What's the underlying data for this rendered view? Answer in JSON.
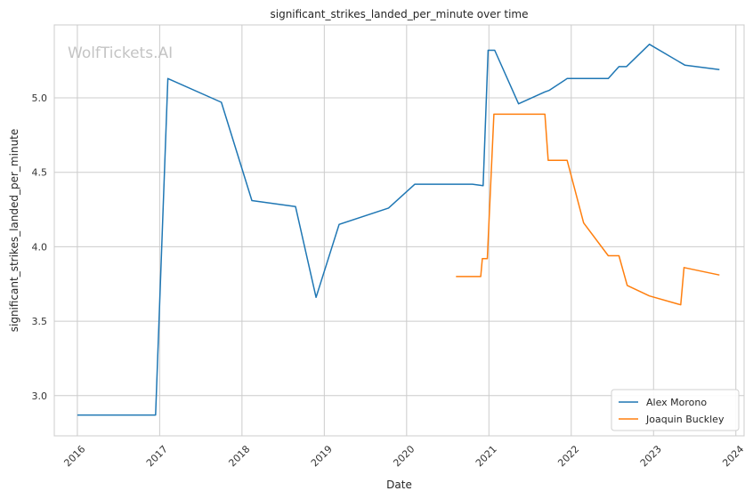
{
  "chart_data": {
    "type": "line",
    "title": "significant_strikes_landed_per_minute over time",
    "xlabel": "Date",
    "ylabel": "significant_strikes_landed_per_minute",
    "watermark": "WolfTickets.AI",
    "xlim": [
      2015.72,
      2024.1
    ],
    "ylim": [
      2.73,
      5.49
    ],
    "x_ticks": [
      2016,
      2017,
      2018,
      2019,
      2020,
      2021,
      2022,
      2023,
      2024
    ],
    "x_tick_labels": [
      "2016",
      "2017",
      "2018",
      "2019",
      "2020",
      "2021",
      "2022",
      "2023",
      "2024"
    ],
    "y_ticks": [
      3.0,
      3.5,
      4.0,
      4.5,
      5.0
    ],
    "y_tick_labels": [
      "3.0",
      "3.5",
      "4.0",
      "4.5",
      "5.0"
    ],
    "grid": true,
    "legend_position": "bottom-right",
    "series": [
      {
        "name": "Alex Morono",
        "color": "#1f77b4",
        "points": [
          [
            2016.0,
            2.87
          ],
          [
            2016.95,
            2.87
          ],
          [
            2017.1,
            5.13
          ],
          [
            2017.75,
            4.97
          ],
          [
            2018.12,
            4.31
          ],
          [
            2018.65,
            4.27
          ],
          [
            2018.9,
            3.66
          ],
          [
            2019.18,
            4.15
          ],
          [
            2019.78,
            4.26
          ],
          [
            2020.1,
            4.42
          ],
          [
            2020.8,
            4.42
          ],
          [
            2020.93,
            4.41
          ],
          [
            2020.99,
            5.32
          ],
          [
            2021.07,
            5.32
          ],
          [
            2021.36,
            4.96
          ],
          [
            2021.68,
            5.04
          ],
          [
            2021.73,
            5.05
          ],
          [
            2021.95,
            5.13
          ],
          [
            2022.45,
            5.13
          ],
          [
            2022.58,
            5.21
          ],
          [
            2022.67,
            5.21
          ],
          [
            2022.95,
            5.36
          ],
          [
            2023.38,
            5.22
          ],
          [
            2023.8,
            5.19
          ]
        ]
      },
      {
        "name": "Joaquin Buckley",
        "color": "#ff7f0e",
        "points": [
          [
            2020.6,
            3.8
          ],
          [
            2020.9,
            3.8
          ],
          [
            2020.92,
            3.92
          ],
          [
            2020.98,
            3.92
          ],
          [
            2021.06,
            4.89
          ],
          [
            2021.68,
            4.89
          ],
          [
            2021.72,
            4.58
          ],
          [
            2021.95,
            4.58
          ],
          [
            2022.15,
            4.16
          ],
          [
            2022.45,
            3.94
          ],
          [
            2022.58,
            3.94
          ],
          [
            2022.68,
            3.74
          ],
          [
            2022.95,
            3.67
          ],
          [
            2023.33,
            3.61
          ],
          [
            2023.37,
            3.86
          ],
          [
            2023.8,
            3.81
          ]
        ]
      }
    ]
  }
}
